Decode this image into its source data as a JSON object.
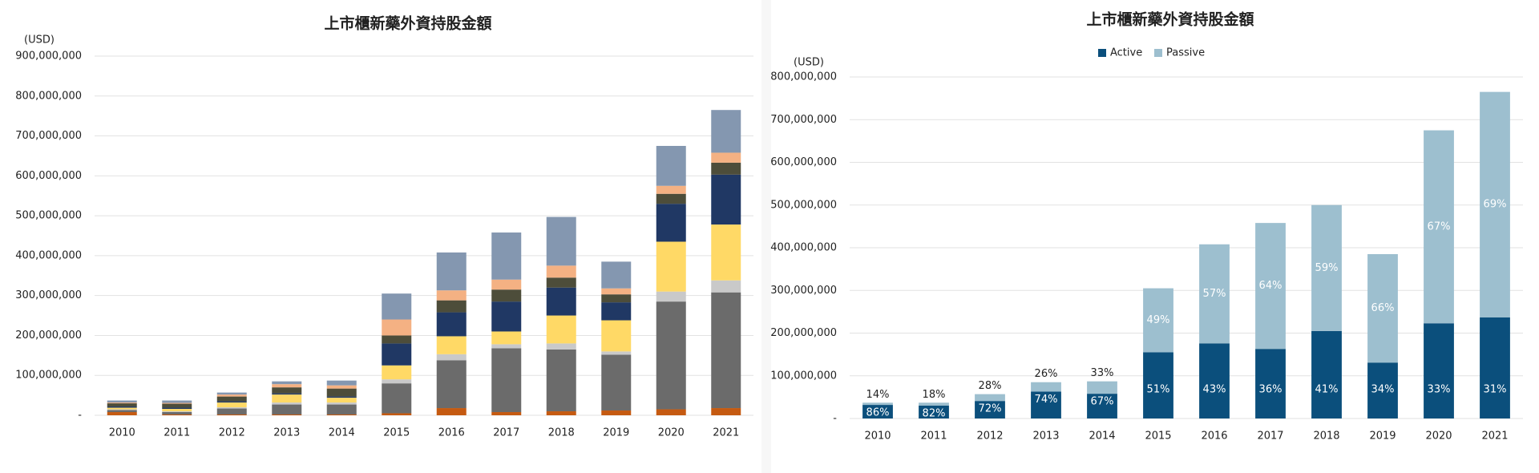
{
  "chart_data": [
    {
      "type": "bar",
      "stacked": true,
      "title": "上市櫃新藥外資持股金額",
      "y_label": "(USD)",
      "categories": [
        "2010",
        "2011",
        "2012",
        "2013",
        "2014",
        "2015",
        "2016",
        "2017",
        "2018",
        "2019",
        "2020",
        "2021"
      ],
      "series": [
        {
          "color": "#c55a11",
          "values": [
            8000000,
            2000000,
            2000000,
            2000000,
            2000000,
            5000000,
            18000000,
            8000000,
            10000000,
            12000000,
            15000000,
            18000000
          ]
        },
        {
          "color": "#6b6b6b",
          "values": [
            5000000,
            6000000,
            15000000,
            25000000,
            25000000,
            75000000,
            120000000,
            160000000,
            155000000,
            140000000,
            270000000,
            290000000
          ]
        },
        {
          "color": "#c9c9c9",
          "values": [
            2000000,
            2000000,
            3000000,
            5000000,
            5000000,
            10000000,
            15000000,
            10000000,
            15000000,
            8000000,
            25000000,
            30000000
          ]
        },
        {
          "color": "#ffd966",
          "values": [
            4000000,
            6000000,
            12000000,
            20000000,
            12000000,
            35000000,
            45000000,
            32000000,
            70000000,
            78000000,
            125000000,
            140000000
          ]
        },
        {
          "color": "#203864",
          "values": [
            3000000,
            3000000,
            3000000,
            3000000,
            3000000,
            55000000,
            60000000,
            75000000,
            70000000,
            45000000,
            95000000,
            125000000
          ]
        },
        {
          "color": "#4d4d3a",
          "values": [
            8000000,
            10000000,
            12000000,
            15000000,
            20000000,
            20000000,
            30000000,
            30000000,
            25000000,
            20000000,
            25000000,
            30000000
          ]
        },
        {
          "color": "#f4b183",
          "values": [
            2000000,
            2000000,
            5000000,
            8000000,
            8000000,
            40000000,
            25000000,
            25000000,
            30000000,
            15000000,
            20000000,
            25000000
          ]
        },
        {
          "color": "#8497b0",
          "values": [
            5000000,
            6000000,
            5000000,
            7000000,
            12000000,
            65000000,
            95000000,
            118000000,
            122000000,
            67000000,
            100000000,
            107000000
          ]
        }
      ],
      "ylim": [
        0,
        900000000
      ],
      "yticks": [
        {
          "value": 0,
          "label": "-"
        },
        {
          "value": 100000000,
          "label": "100,000,000"
        },
        {
          "value": 200000000,
          "label": "200,000,000"
        },
        {
          "value": 300000000,
          "label": "300,000,000"
        },
        {
          "value": 400000000,
          "label": "400,000,000"
        },
        {
          "value": 500000000,
          "label": "500,000,000"
        },
        {
          "value": 600000000,
          "label": "600,000,000"
        },
        {
          "value": 700000000,
          "label": "700,000,000"
        },
        {
          "value": 800000000,
          "label": "800,000,000"
        },
        {
          "value": 900000000,
          "label": "900,000,000"
        }
      ],
      "grid": true
    },
    {
      "type": "bar",
      "stacked": true,
      "title": "上市櫃新藥外資持股金額",
      "y_label": "(USD)",
      "legend": "top",
      "categories": [
        "2010",
        "2011",
        "2012",
        "2013",
        "2014",
        "2015",
        "2016",
        "2017",
        "2018",
        "2019",
        "2020",
        "2021"
      ],
      "series": [
        {
          "name": "Active",
          "color": "#0b4f7c",
          "values": [
            31800000,
            30300000,
            41000000,
            63000000,
            58000000,
            155000000,
            176000000,
            163000000,
            205000000,
            131000000,
            223000000,
            237000000
          ],
          "value_labels": [
            "86%",
            "82%",
            "72%",
            "74%",
            "67%",
            "51%",
            "43%",
            "36%",
            "41%",
            "34%",
            "33%",
            "31%"
          ]
        },
        {
          "name": "Passive",
          "color": "#9dbfcf",
          "values": [
            5200000,
            6700000,
            16000000,
            22000000,
            29000000,
            150000000,
            232000000,
            295000000,
            295000000,
            254000000,
            452000000,
            528000000
          ],
          "value_labels": [
            "14%",
            "18%",
            "28%",
            "26%",
            "33%",
            "49%",
            "57%",
            "64%",
            "59%",
            "66%",
            "67%",
            "69%"
          ]
        }
      ],
      "ylim": [
        0,
        800000000
      ],
      "yticks": [
        {
          "value": 0,
          "label": "-"
        },
        {
          "value": 100000000,
          "label": "100,000,000"
        },
        {
          "value": 200000000,
          "label": "200,000,000"
        },
        {
          "value": 300000000,
          "label": "300,000,000"
        },
        {
          "value": 400000000,
          "label": "400,000,000"
        },
        {
          "value": 500000000,
          "label": "500,000,000"
        },
        {
          "value": 600000000,
          "label": "600,000,000"
        },
        {
          "value": 700000000,
          "label": "700,000,000"
        },
        {
          "value": 800000000,
          "label": "800,000,000"
        }
      ],
      "grid": true
    }
  ]
}
